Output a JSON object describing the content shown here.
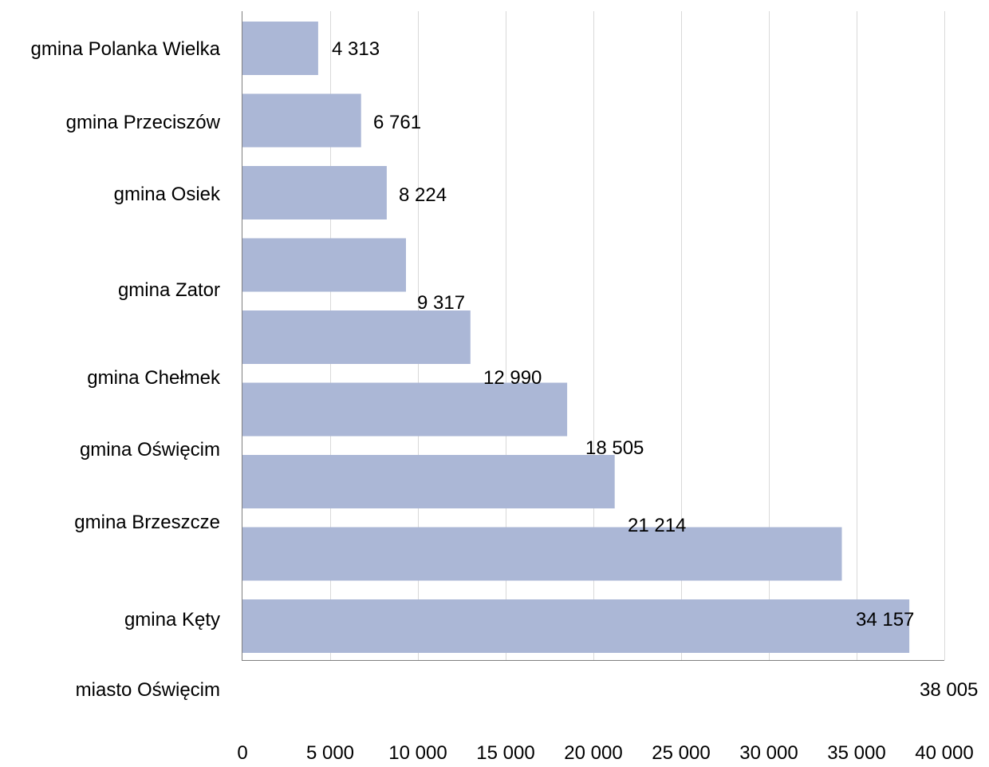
{
  "chart_data": {
    "type": "bar",
    "orientation": "horizontal",
    "categories": [
      "gmina Polanka Wielka",
      "gmina Przeciszów",
      "gmina Osiek",
      "gmina Zator",
      "gmina Chełmek",
      "gmina Oświęcim",
      "gmina Brzeszcze",
      "gmina Kęty",
      "miasto Oświęcim"
    ],
    "values": [
      4313,
      6761,
      8224,
      9317,
      12990,
      18505,
      21214,
      34157,
      38005
    ],
    "value_labels": [
      "4 313",
      "6 761",
      "8 224",
      "9 317",
      "12 990",
      "18 505",
      "21 214",
      "34 157",
      "38 005"
    ],
    "title": "",
    "xlabel": "",
    "ylabel": "",
    "xlim": [
      0,
      40000
    ],
    "x_ticks": [
      0,
      5000,
      10000,
      15000,
      20000,
      25000,
      30000,
      35000,
      40000
    ],
    "x_tick_labels": [
      "0",
      "5 000",
      "10 000",
      "15 000",
      "20 000",
      "25 000",
      "30 000",
      "35 000",
      "40 000"
    ],
    "grid": "vertical",
    "legend": "none",
    "colors": {
      "bar": "#abb7d6",
      "grid": "#d9d9d9",
      "axis": "#808080",
      "text": "#000000"
    }
  }
}
